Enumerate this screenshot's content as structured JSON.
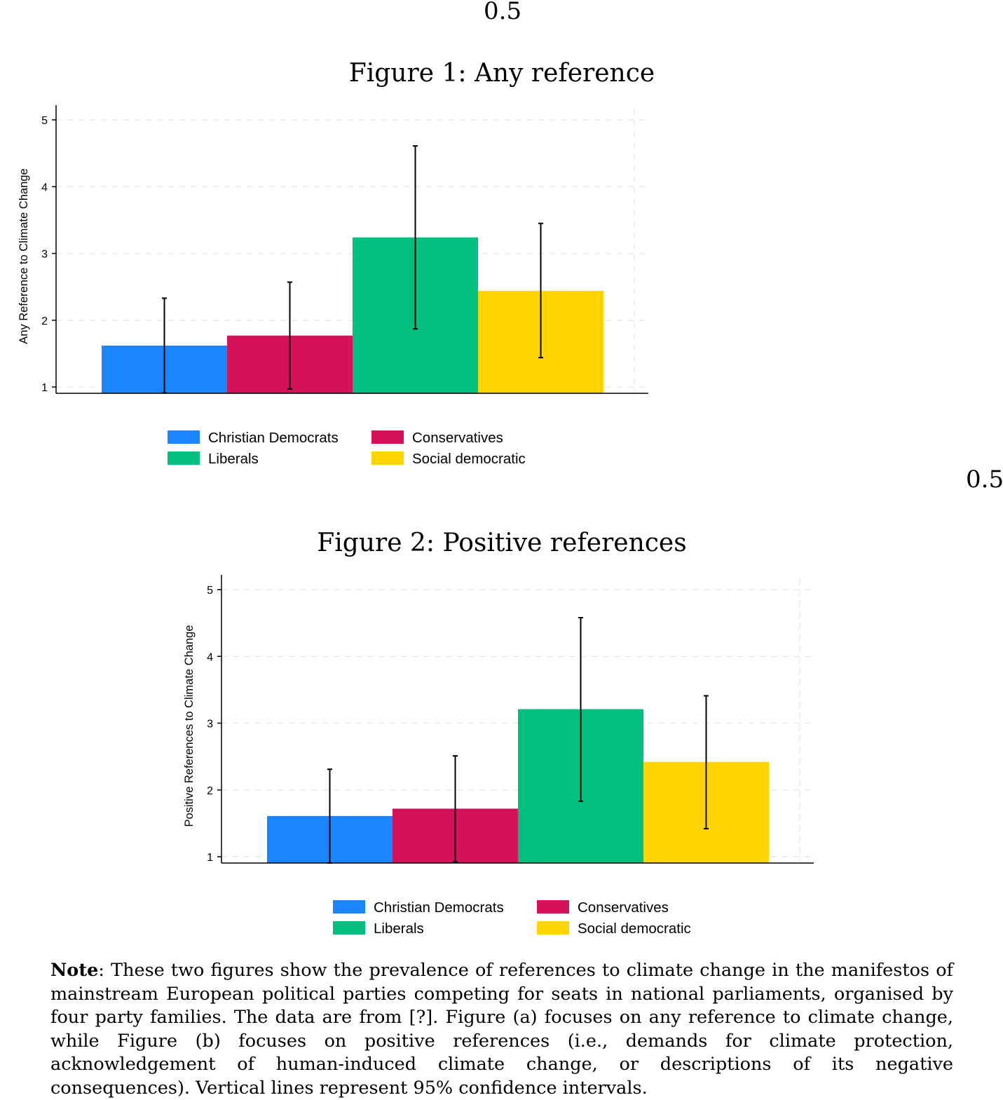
{
  "stray_labels": [
    "0.5",
    "0.5"
  ],
  "figures": [
    {
      "caption": "Figure 1: Any reference"
    },
    {
      "caption": "Figure 2: Positive references"
    }
  ],
  "chart_data": [
    {
      "type": "bar",
      "ylabel": "Any Reference to Climate Change",
      "yticks": [
        1,
        2,
        3,
        4,
        5
      ],
      "ylim": [
        0.9,
        5.2
      ],
      "grid": true,
      "legend_position": "bottom",
      "categories": [
        "Christian Democrats",
        "Conservatives",
        "Liberals",
        "Social democratic"
      ],
      "colors": [
        "#1a85ff",
        "#d41159",
        "#00bf7f",
        "#ffd400"
      ],
      "values": [
        1.62,
        1.77,
        3.24,
        2.44
      ],
      "ci_low": [
        0.91,
        0.97,
        1.87,
        1.44
      ],
      "ci_high": [
        2.33,
        2.57,
        4.61,
        3.45
      ],
      "legend": [
        "Christian Democrats",
        "Conservatives",
        "Liberals",
        "Social democratic"
      ]
    },
    {
      "type": "bar",
      "ylabel": "Positive References to Climate Change",
      "yticks": [
        1,
        2,
        3,
        4,
        5
      ],
      "ylim": [
        0.9,
        5.2
      ],
      "grid": true,
      "legend_position": "bottom",
      "categories": [
        "Christian Democrats",
        "Conservatives",
        "Liberals",
        "Social democratic"
      ],
      "colors": [
        "#1a85ff",
        "#d41159",
        "#00bf7f",
        "#ffd400"
      ],
      "values": [
        1.61,
        1.72,
        3.21,
        2.42
      ],
      "ci_low": [
        0.9,
        0.92,
        1.83,
        1.42
      ],
      "ci_high": [
        2.31,
        2.51,
        4.58,
        3.41
      ],
      "legend": [
        "Christian Democrats",
        "Conservatives",
        "Liberals",
        "Social democratic"
      ]
    }
  ],
  "note": {
    "label": "Note",
    "text": ": These two figures show the prevalence of references to climate change in the manifestos of mainstream European political parties competing for seats in national parliaments, organised by four party families. The data are from [?]. Figure (a) focuses on any reference to climate change, while Figure (b) focuses on positive references (i.e., demands for climate protection, acknowledgement of human-induced climate change, or descriptions of its negative consequences). Vertical lines represent 95% confidence intervals."
  }
}
